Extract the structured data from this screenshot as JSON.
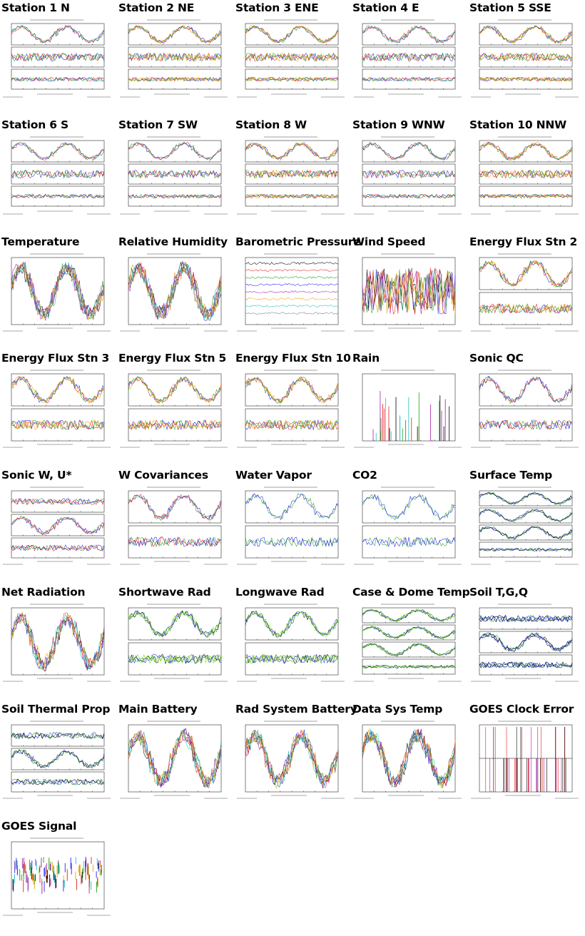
{
  "cells": [
    {
      "title": "Station 1 N",
      "layout": "station3",
      "colors": [
        "#2222ee",
        "#e02020",
        "#20a020"
      ]
    },
    {
      "title": "Station 2 NE",
      "layout": "station3",
      "colors": [
        "#2222ee",
        "#e02020",
        "#20a020",
        "#f0a000"
      ]
    },
    {
      "title": "Station 3 ENE",
      "layout": "station3",
      "colors": [
        "#2222ee",
        "#e02020",
        "#20a020",
        "#f0a000"
      ]
    },
    {
      "title": "Station 4 E",
      "layout": "station3",
      "colors": [
        "#2222ee",
        "#e02020",
        "#20a020"
      ]
    },
    {
      "title": "Station 5 SSE",
      "layout": "station3",
      "colors": [
        "#2222ee",
        "#e02020",
        "#20a020",
        "#f0a000"
      ]
    },
    {
      "title": "Station 6 S",
      "layout": "station3",
      "colors": [
        "#2222ee",
        "#e02020",
        "#20a020"
      ]
    },
    {
      "title": "Station 7 SW",
      "layout": "station3",
      "colors": [
        "#2222ee",
        "#e02020",
        "#20a020"
      ]
    },
    {
      "title": "Station 8 W",
      "layout": "station3",
      "colors": [
        "#2222ee",
        "#e02020",
        "#20a020",
        "#f0a000"
      ]
    },
    {
      "title": "Station 9 WNW",
      "layout": "station3",
      "colors": [
        "#2222ee",
        "#e02020",
        "#20a020"
      ]
    },
    {
      "title": "Station 10 NNW",
      "layout": "station3",
      "colors": [
        "#2222ee",
        "#e02020",
        "#20a020",
        "#f0a000"
      ]
    },
    {
      "title": "Temperature",
      "layout": "single",
      "colors": [
        "#000000",
        "#2222ee",
        "#20a020",
        "#e02020",
        "#a020a0",
        "#20c0c0",
        "#f0a000",
        "#808080"
      ]
    },
    {
      "title": "Relative Humidity",
      "layout": "single",
      "colors": [
        "#000000",
        "#2222ee",
        "#20a020",
        "#e02020",
        "#a020a0",
        "#20c0c0",
        "#f0a000",
        "#808080"
      ]
    },
    {
      "title": "Barometric Pressure",
      "layout": "flat",
      "colors": [
        "#000000",
        "#e02020",
        "#20a020",
        "#2222ee",
        "#a020a0",
        "#f0a000",
        "#20c0c0",
        "#808080"
      ]
    },
    {
      "title": "Wind Speed",
      "layout": "noisy",
      "colors": [
        "#000000",
        "#2222ee",
        "#20a020",
        "#e02020",
        "#a020a0",
        "#f0a000"
      ]
    },
    {
      "title": "Energy Flux Stn 2",
      "layout": "two",
      "colors": [
        "#2222ee",
        "#e02020",
        "#20a020",
        "#f0a000"
      ]
    },
    {
      "title": "Energy Flux Stn 3",
      "layout": "two",
      "colors": [
        "#2222ee",
        "#e02020",
        "#20a020",
        "#f0a000"
      ]
    },
    {
      "title": "Energy Flux Stn 5",
      "layout": "two",
      "colors": [
        "#2222ee",
        "#e02020",
        "#20a020",
        "#f0a000"
      ]
    },
    {
      "title": "Energy Flux Stn 10",
      "layout": "two",
      "colors": [
        "#2222ee",
        "#e02020",
        "#20a020",
        "#f0a000"
      ]
    },
    {
      "title": "Rain",
      "layout": "spikes",
      "colors": [
        "#000000",
        "#e02020",
        "#20c0c0",
        "#a020a0",
        "#20a020"
      ]
    },
    {
      "title": "Sonic QC",
      "layout": "two",
      "colors": [
        "#20a020",
        "#2222ee",
        "#e02020"
      ]
    },
    {
      "title": "Sonic W, U*",
      "layout": "three",
      "colors": [
        "#20a020",
        "#2222ee",
        "#e02020"
      ]
    },
    {
      "title": "W Covariances",
      "layout": "two",
      "colors": [
        "#20a020",
        "#2222ee",
        "#e02020"
      ]
    },
    {
      "title": "Water Vapor",
      "layout": "two",
      "colors": [
        "#20a020",
        "#2222ee"
      ]
    },
    {
      "title": "CO2",
      "layout": "two",
      "colors": [
        "#20a020",
        "#2222ee"
      ]
    },
    {
      "title": "Surface Temp",
      "layout": "four",
      "colors": [
        "#2222ee",
        "#20a020",
        "#000000"
      ]
    },
    {
      "title": "Net Radiation",
      "layout": "single",
      "colors": [
        "#000000",
        "#2222ee",
        "#20a020",
        "#e02020",
        "#a020a0",
        "#20c0c0",
        "#f0a000"
      ]
    },
    {
      "title": "Shortwave Rad",
      "layout": "two",
      "colors": [
        "#000000",
        "#2222ee",
        "#20a020",
        "#80e000"
      ]
    },
    {
      "title": "Longwave Rad",
      "layout": "two",
      "colors": [
        "#000000",
        "#2222ee",
        "#20a020",
        "#80e000"
      ]
    },
    {
      "title": "Case & Dome Temp",
      "layout": "four",
      "colors": [
        "#000000",
        "#2222ee",
        "#20a020",
        "#80e000"
      ]
    },
    {
      "title": "Soil T,G,Q",
      "layout": "three",
      "colors": [
        "#000000",
        "#2222ee",
        "#20a020",
        "#000080"
      ]
    },
    {
      "title": "Soil Thermal Prop",
      "layout": "three",
      "colors": [
        "#2222ee",
        "#20a020",
        "#000000"
      ]
    },
    {
      "title": "Main Battery",
      "layout": "single",
      "colors": [
        "#000000",
        "#2222ee",
        "#20a020",
        "#e02020",
        "#a020a0",
        "#20c0c0",
        "#f0a000"
      ]
    },
    {
      "title": "Rad System Battery",
      "layout": "single",
      "colors": [
        "#000000",
        "#2222ee",
        "#20a020",
        "#e02020",
        "#a020a0",
        "#20c0c0",
        "#f0a000"
      ]
    },
    {
      "title": "Data Sys Temp",
      "layout": "single",
      "colors": [
        "#000000",
        "#2222ee",
        "#20a020",
        "#e02020",
        "#a020a0",
        "#20c0c0",
        "#f0a000"
      ]
    },
    {
      "title": "GOES Clock Error",
      "layout": "clock",
      "colors": [
        "#000000",
        "#e02020",
        "#a020a0"
      ]
    },
    {
      "title": "GOES Signal",
      "layout": "signal",
      "colors": [
        "#2222ee",
        "#20a020",
        "#e02020",
        "#a020a0",
        "#20c0c0",
        "#000000",
        "#f0a000"
      ]
    }
  ]
}
